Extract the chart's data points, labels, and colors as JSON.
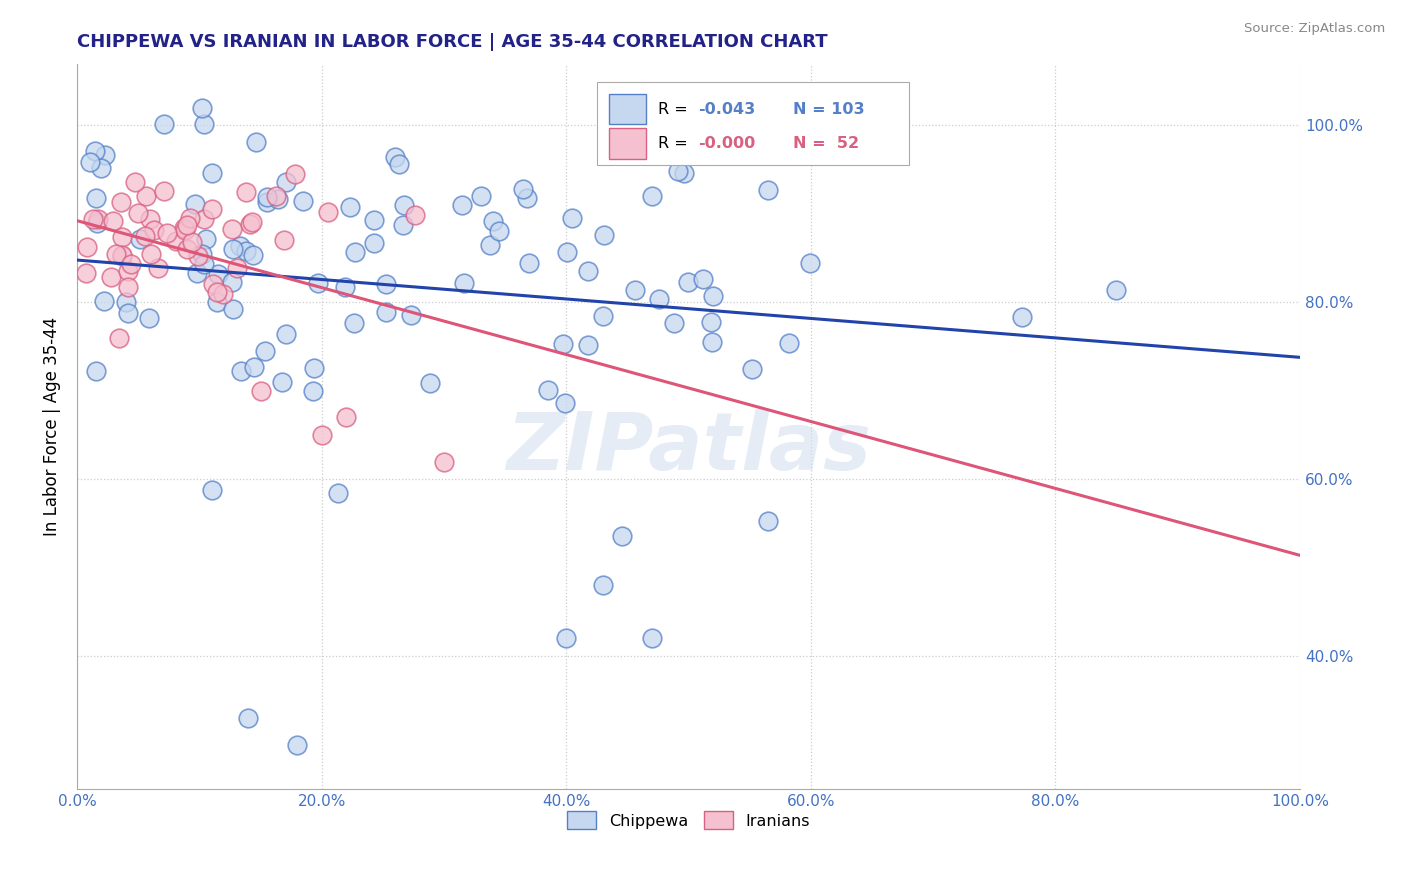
{
  "title": "CHIPPEWA VS IRANIAN IN LABOR FORCE | AGE 35-44 CORRELATION CHART",
  "source": "Source: ZipAtlas.com",
  "ylabel": "In Labor Force | Age 35-44",
  "xlim": [
    0.0,
    1.0
  ],
  "ylim": [
    0.25,
    1.07
  ],
  "watermark": "ZIPatlas",
  "blue_r": "-0.043",
  "blue_n": "103",
  "pink_r": "-0.000",
  "pink_n": "52",
  "blue_fill": "#c5d8f0",
  "blue_edge": "#5580c8",
  "pink_fill": "#f5c0d0",
  "pink_edge": "#d86080",
  "blue_line_color": "#2244aa",
  "pink_line_color": "#dd5577",
  "background_color": "#ffffff",
  "grid_color": "#cccccc",
  "tick_color": "#4472c4",
  "title_color": "#222288",
  "source_color": "#888888",
  "yticks": [
    0.4,
    0.6,
    0.8,
    1.0
  ],
  "ytick_labels": [
    "40.0%",
    "60.0%",
    "80.0%",
    "100.0%"
  ],
  "xticks": [
    0.0,
    0.2,
    0.4,
    0.6,
    0.8,
    1.0
  ],
  "xtick_labels": [
    "0.0%",
    "20.0%",
    "40.0%",
    "60.0%",
    "80.0%",
    "100.0%"
  ]
}
